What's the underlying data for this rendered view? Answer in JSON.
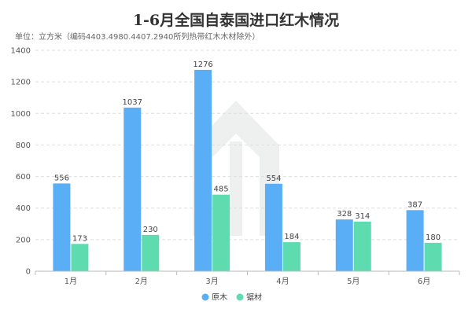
{
  "chart_data": {
    "type": "bar",
    "title": "1-6月全国自泰国进口红木情况",
    "subtitle": "单位：立方米（编码4403.4980.4407.2940所列热带红木木材除外）",
    "categories": [
      "1月",
      "2月",
      "3月",
      "4月",
      "5月",
      "6月"
    ],
    "series": [
      {
        "name": "原木",
        "values": [
          556,
          1037,
          1276,
          554,
          328,
          387
        ]
      },
      {
        "name": "锯材",
        "values": [
          173,
          230,
          485,
          184,
          314,
          180
        ]
      }
    ],
    "ylim": [
      0,
      1400
    ],
    "yticks": [
      0,
      200,
      400,
      600,
      800,
      1000,
      1200,
      1400
    ],
    "grid": true,
    "legend": "bottom-center",
    "colors": {
      "原木": "#5aaef5",
      "锯材": "#5fdbb0",
      "grid": "#dddddd",
      "axis": "#bbbbbb"
    }
  }
}
